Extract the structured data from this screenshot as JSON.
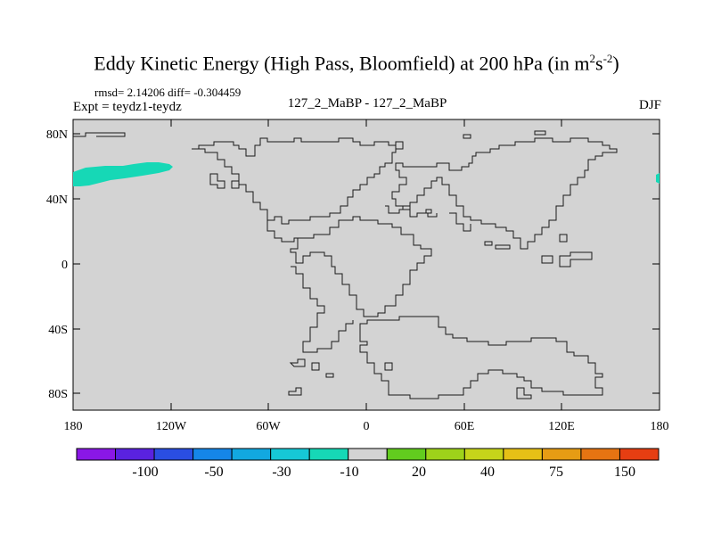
{
  "title": {
    "main": "Eddy Kinetic Energy (High Pass, Bloomfield) at 200 hPa (in m",
    "sup1": "2",
    "mid": "s",
    "sup2": "-2",
    "end": ")"
  },
  "stats": "rmsd= 2.14206 diff= -0.304459",
  "expt": "Expt = teydz1-teydz",
  "runs": "127_2_MaBP - 127_2_MaBP",
  "season": "DJF",
  "map": {
    "background_color": "#d3d3d3",
    "lat_ticks": [
      "80N",
      "40N",
      "0",
      "40S",
      "80S"
    ],
    "lon_ticks": [
      "180",
      "120W",
      "60W",
      "0",
      "60E",
      "120E",
      "180"
    ],
    "anomaly_color": "#16d8b6"
  },
  "colorbar": {
    "colors": [
      "#8a17e6",
      "#5a22e0",
      "#2a4ee2",
      "#1586e8",
      "#12a8e0",
      "#16c8d6",
      "#16d8b6",
      "#d3d3d3",
      "#62cc1e",
      "#9ed21a",
      "#c6d41a",
      "#e6c016",
      "#e69c14",
      "#e67412",
      "#e63e12"
    ],
    "labels": [
      "-100",
      "-50",
      "-30",
      "-10",
      "20",
      "40",
      "75",
      "150"
    ]
  }
}
